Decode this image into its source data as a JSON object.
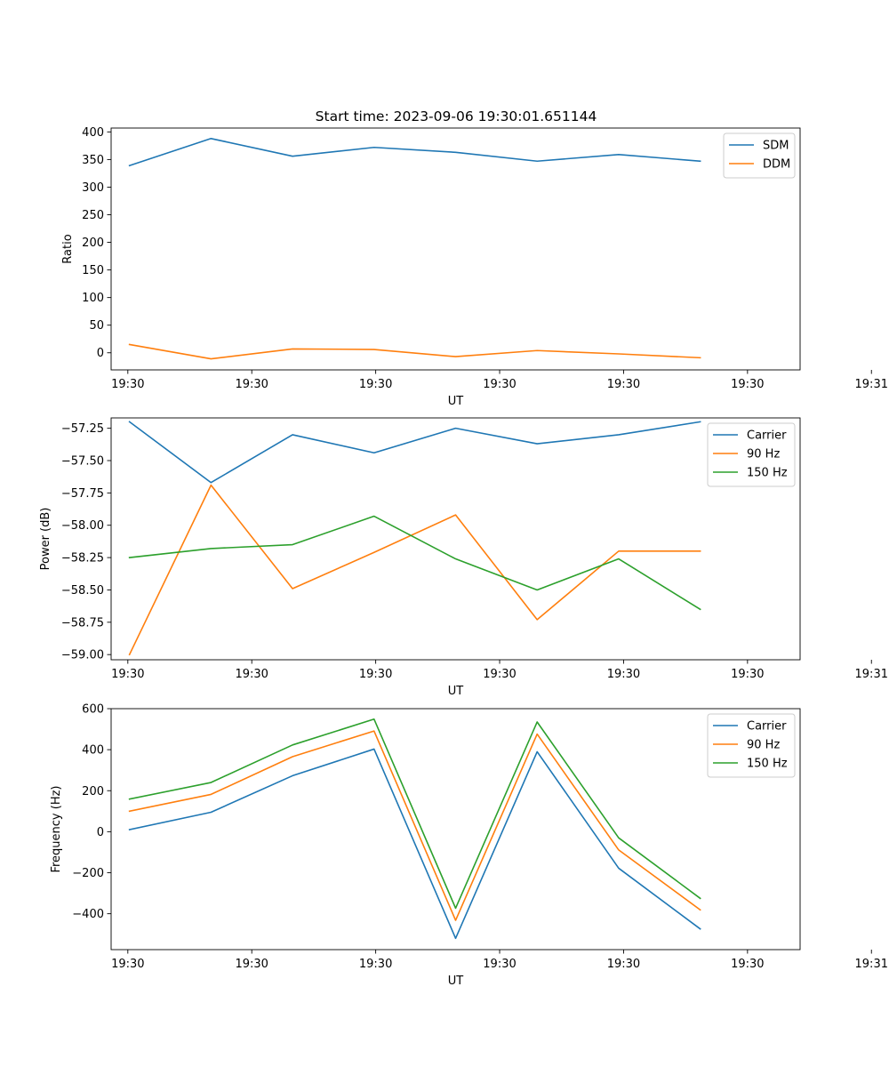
{
  "figure": {
    "title": "Start time: 2023-09-06 19:30:01.651144"
  },
  "chart_data": [
    {
      "type": "line",
      "id": "ratio",
      "title": "Start time: 2023-09-06 19:30:01.651144",
      "xlabel": "UT",
      "ylabel": "Ratio",
      "x": [
        1,
        2,
        3,
        4,
        5,
        6,
        7,
        8
      ],
      "xlim": [
        0.775,
        9.225
      ],
      "xticks": [
        0.98,
        2.5,
        4.02,
        5.54,
        7.06,
        8.58,
        10.1
      ],
      "xtick_labels": [
        "19:30",
        "19:30",
        "19:30",
        "19:30",
        "19:30",
        "19:30",
        "19:31"
      ],
      "ylim": [
        -31,
        407
      ],
      "yticks": [
        0,
        50,
        100,
        150,
        200,
        250,
        300,
        350,
        400
      ],
      "ytick_labels": [
        "0",
        "50",
        "100",
        "150",
        "200",
        "250",
        "300",
        "350",
        "400"
      ],
      "legend": "upper-right",
      "series": [
        {
          "name": "SDM",
          "color": "#1f77b4",
          "values": [
            339,
            388,
            356,
            372,
            363,
            347,
            359,
            347
          ]
        },
        {
          "name": "DDM",
          "color": "#ff7f0e",
          "values": [
            15,
            -11,
            7,
            6,
            -7,
            4,
            -2,
            -9
          ]
        }
      ]
    },
    {
      "type": "line",
      "id": "power",
      "title": "",
      "xlabel": "UT",
      "ylabel": "Power (dB)",
      "x": [
        1,
        2,
        3,
        4,
        5,
        6,
        7,
        8
      ],
      "xlim": [
        0.775,
        9.225
      ],
      "xticks": [
        0.98,
        2.5,
        4.02,
        5.54,
        7.06,
        8.58,
        10.1
      ],
      "xtick_labels": [
        "19:30",
        "19:30",
        "19:30",
        "19:30",
        "19:30",
        "19:30",
        "19:31"
      ],
      "ylim": [
        -59.04,
        -57.17
      ],
      "yticks": [
        -59.0,
        -58.75,
        -58.5,
        -58.25,
        -58.0,
        -57.75,
        -57.5,
        -57.25
      ],
      "ytick_labels": [
        "−59.00",
        "−58.75",
        "−58.50",
        "−58.25",
        "−58.00",
        "−57.75",
        "−57.50",
        "−57.25"
      ],
      "legend": "upper-right",
      "series": [
        {
          "name": "Carrier",
          "color": "#1f77b4",
          "values": [
            -57.2,
            -57.67,
            -57.3,
            -57.44,
            -57.25,
            -57.37,
            -57.3,
            -57.2
          ]
        },
        {
          "name": "90 Hz",
          "color": "#ff7f0e",
          "values": [
            -59.0,
            -57.69,
            -58.49,
            -58.21,
            -57.92,
            -58.73,
            -58.2,
            -58.2
          ]
        },
        {
          "name": "150 Hz",
          "color": "#2ca02c",
          "values": [
            -58.25,
            -58.18,
            -58.15,
            -57.93,
            -58.26,
            -58.5,
            -58.26,
            -58.65
          ]
        }
      ]
    },
    {
      "type": "line",
      "id": "frequency",
      "title": "",
      "xlabel": "UT",
      "ylabel": "Frequency (Hz)",
      "x": [
        1,
        2,
        3,
        4,
        5,
        6,
        7,
        8
      ],
      "xlim": [
        0.775,
        9.225
      ],
      "xticks": [
        0.98,
        2.5,
        4.02,
        5.54,
        7.06,
        8.58,
        10.1
      ],
      "xtick_labels": [
        "19:30",
        "19:30",
        "19:30",
        "19:30",
        "19:30",
        "19:30",
        "19:31"
      ],
      "ylim": [
        -575,
        600
      ],
      "yticks": [
        -400,
        -200,
        0,
        200,
        400,
        600
      ],
      "ytick_labels": [
        "−400",
        "−200",
        "0",
        "200",
        "400",
        "600"
      ],
      "legend": "upper-right",
      "series": [
        {
          "name": "Carrier",
          "color": "#1f77b4",
          "values": [
            10,
            95,
            273,
            403,
            -520,
            390,
            -178,
            -474
          ]
        },
        {
          "name": "90 Hz",
          "color": "#ff7f0e",
          "values": [
            100,
            182,
            366,
            491,
            -432,
            476,
            -89,
            -381
          ]
        },
        {
          "name": "150 Hz",
          "color": "#2ca02c",
          "values": [
            159,
            240,
            423,
            549,
            -373,
            535,
            -30,
            -325
          ]
        }
      ]
    }
  ]
}
